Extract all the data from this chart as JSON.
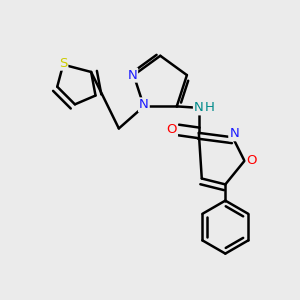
{
  "background_color": "#ebebeb",
  "bond_color": "#000000",
  "bond_width": 1.8,
  "figsize": [
    3.0,
    3.0
  ],
  "dpi": 100,
  "colors": {
    "N": "#1a1aff",
    "O": "#ff0000",
    "S": "#cccc00",
    "NH": "#008b8b",
    "C": "#000000"
  }
}
